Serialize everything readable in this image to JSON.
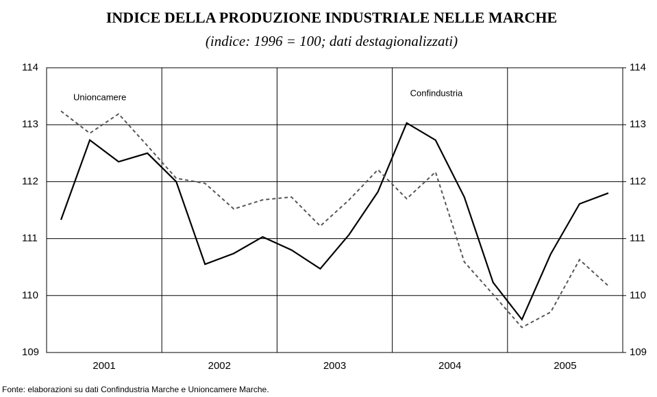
{
  "chart_data": {
    "type": "line",
    "title": "INDICE DELLA PRODUZIONE INDUSTRIALE NELLE MARCHE",
    "subtitle": "(indice: 1996 = 100; dati destagionalizzati)",
    "source": "Fonte: elaborazioni su dati Confindustria Marche e Unioncamere Marche.",
    "x_groups": [
      "2001",
      "2002",
      "2003",
      "2004",
      "2005"
    ],
    "categories": [
      null,
      null,
      null,
      null,
      null,
      null,
      null,
      null,
      null,
      null,
      null,
      null,
      null,
      null,
      null,
      null,
      null,
      null,
      null,
      null
    ],
    "series": [
      {
        "name": "Confindustria",
        "color": "#000000",
        "dash": false,
        "values": [
          111.33,
          112.73,
          112.35,
          112.5,
          112.0,
          110.55,
          110.74,
          111.03,
          110.8,
          110.47,
          111.07,
          111.82,
          113.03,
          112.73,
          111.73,
          110.23,
          109.58,
          110.73,
          111.61,
          111.8
        ]
      },
      {
        "name": "Unioncamere",
        "color": "#555555",
        "dash": true,
        "values": [
          113.24,
          112.85,
          113.19,
          112.63,
          112.06,
          111.97,
          111.52,
          111.68,
          111.73,
          111.22,
          111.68,
          112.21,
          111.7,
          112.17,
          110.59,
          110.02,
          109.44,
          109.71,
          110.63,
          110.17
        ]
      }
    ],
    "ylim": [
      109,
      114
    ],
    "yticks": [
      109,
      110,
      111,
      112,
      113,
      114
    ],
    "y2lim": [
      109,
      114
    ],
    "y2ticks": [
      109,
      110,
      111,
      112,
      113,
      114
    ],
    "grid": true
  }
}
